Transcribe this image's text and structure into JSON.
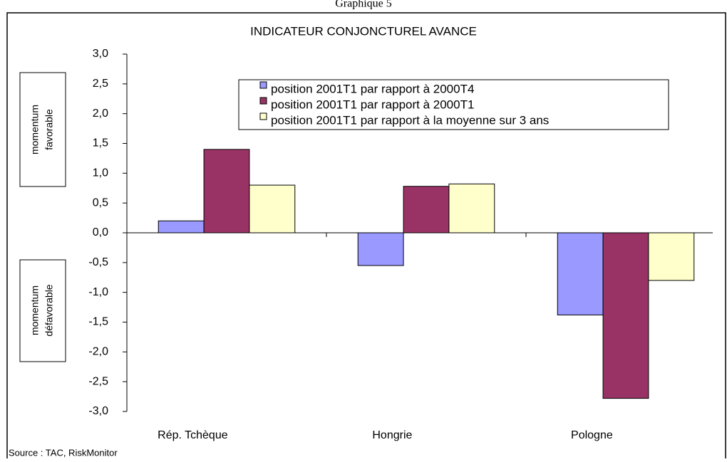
{
  "chart_data": {
    "type": "bar",
    "heading": "Graphique 5",
    "title": "INDICATEUR CONJONCTUREL AVANCE",
    "source": "Source : TAC, RiskMonitor",
    "annotations": [
      [
        "momentum",
        "favorable"
      ],
      [
        "momentum",
        "défavorable"
      ]
    ],
    "categories": [
      "Rép. Tchèque",
      "Hongrie",
      "Pologne"
    ],
    "series": [
      {
        "name": "position 2001T1 par rapport à 2000T4",
        "color": "#9999ff",
        "values": [
          0.2,
          -0.55,
          -1.38
        ]
      },
      {
        "name": "position 2001T1 par rapport à 2000T1",
        "color": "#993366",
        "values": [
          1.4,
          0.78,
          -2.78
        ]
      },
      {
        "name": "position 2001T1 par rapport à la moyenne sur 3 ans",
        "color": "#ffffcc",
        "values": [
          0.8,
          0.82,
          -0.8
        ]
      }
    ],
    "ylim": [
      -3,
      3
    ],
    "yticks": [
      {
        "value": 3,
        "label": "3,0"
      },
      {
        "value": 2.5,
        "label": "2,5"
      },
      {
        "value": 2,
        "label": "2,0"
      },
      {
        "value": 1.5,
        "label": "1,5"
      },
      {
        "value": 1,
        "label": "1,0"
      },
      {
        "value": 0.5,
        "label": "0,5"
      },
      {
        "value": 0,
        "label": "0,0"
      },
      {
        "value": -0.5,
        "label": "-0,5"
      },
      {
        "value": -1,
        "label": "-1,0"
      },
      {
        "value": -1.5,
        "label": "-1,5"
      },
      {
        "value": -2,
        "label": "-2,0"
      },
      {
        "value": -2.5,
        "label": "-2,5"
      },
      {
        "value": -3,
        "label": "-3,0"
      }
    ],
    "grid": false
  }
}
